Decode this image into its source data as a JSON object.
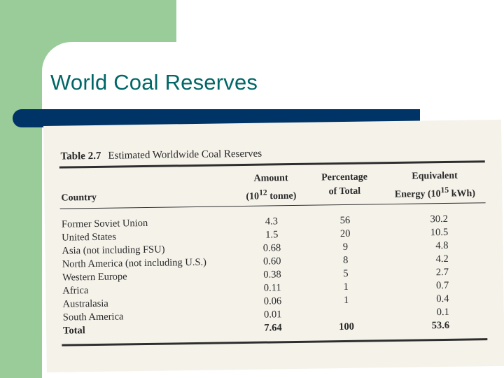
{
  "slide": {
    "title": "World Coal Reserves",
    "colors": {
      "green": "#99cc99",
      "title": "#006666",
      "bar": "#003366"
    }
  },
  "table": {
    "caption_number": "Table 2.7",
    "caption_text": "Estimated Worldwide Coal Reserves",
    "headers": {
      "country": "Country",
      "amount_line1": "Amount",
      "amount_unit_base": "(10",
      "amount_unit_exp": "12",
      "amount_unit_rest": " tonne)",
      "percent_line1": "Percentage",
      "percent_line2": "of Total",
      "energy_line1": "Equivalent",
      "energy_unit_base": "Energy (10",
      "energy_unit_exp": "15",
      "energy_unit_rest": " kWh)"
    },
    "rows": [
      {
        "country": "Former Soviet Union",
        "amount": "4.3",
        "percent": "56",
        "energy": "30.2"
      },
      {
        "country": "United States",
        "amount": "1.5",
        "percent": "20",
        "energy": "10.5"
      },
      {
        "country": "Asia (not including FSU)",
        "amount": "0.68",
        "percent": "9",
        "energy": "4.8"
      },
      {
        "country": "North America (not including U.S.)",
        "amount": "0.60",
        "percent": "8",
        "energy": "4.2"
      },
      {
        "country": "Western Europe",
        "amount": "0.38",
        "percent": "5",
        "energy": "2.7"
      },
      {
        "country": "Africa",
        "amount": "0.11",
        "percent": "1",
        "energy": "0.7"
      },
      {
        "country": "Australasia",
        "amount": "0.06",
        "percent": "1",
        "energy": "0.4"
      },
      {
        "country": "South America",
        "amount": "0.01",
        "percent": "",
        "energy": "0.1"
      }
    ],
    "total": {
      "label": "Total",
      "amount": "7.64",
      "percent": "100",
      "energy": "53.6"
    }
  }
}
